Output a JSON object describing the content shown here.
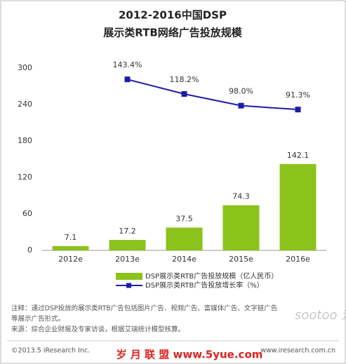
{
  "chart_data": {
    "type": "bar-line",
    "title": [
      "2012-2016中国DSP",
      "展示类RTB网络广告投放规模"
    ],
    "categories": [
      "2012e",
      "2013e",
      "2014e",
      "2015e",
      "2016e"
    ],
    "series": [
      {
        "name": "DSP展示类RTB广告投放规模（亿人民币）",
        "type": "bar",
        "color": "#8cc21c",
        "values": [
          7.1,
          17.2,
          37.5,
          74.3,
          142.1
        ]
      },
      {
        "name": "DSP展示类RTB广告投放增长率（%）",
        "type": "line",
        "color": "#1c1ca8",
        "axis": "y2",
        "values": [
          null,
          143.4,
          118.2,
          98.0,
          91.3
        ],
        "value_labels": [
          null,
          "143.4%",
          "118.2%",
          "98.0%",
          "91.3%"
        ]
      }
    ],
    "ylim": [
      0,
      300
    ],
    "yticks": [
      0,
      60,
      120,
      180,
      240,
      300
    ],
    "y2lim": [
      -152,
      163
    ],
    "grid": false,
    "legend": "bottom"
  },
  "notes": [
    "注释：通过DSP投放的展示类RTB广告包括图片广告、视频广告、富媒体广告、文字链广告",
    "等展示广告形式。",
    "来源：综合企业财报及专家访谈，根据艾瑞统计模型核算。"
  ],
  "copyright": "©2013.5 iResearch Inc.",
  "website": "www.iresearch.com.cn",
  "watermark": [
    "sootoo 速途网",
    "岁 月 联 盟  www.5yue.com"
  ]
}
